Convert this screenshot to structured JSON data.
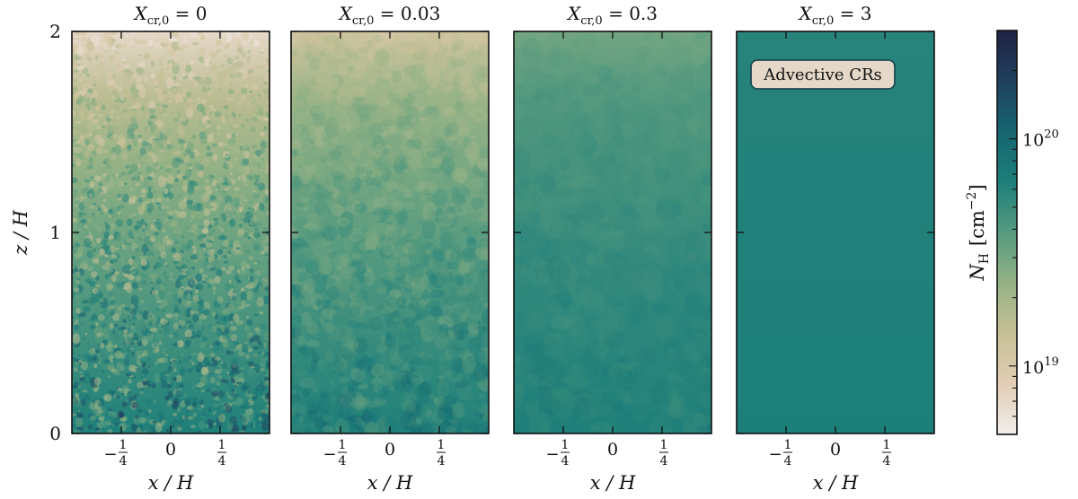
{
  "chart_data": {
    "type": "heatmap",
    "panels": [
      {
        "title_base": "X",
        "title_sub": "cr,0",
        "title_value": " = 0",
        "texture": "clumpy"
      },
      {
        "title_base": "X",
        "title_sub": "cr,0",
        "title_value": " = 0.03",
        "texture": "mixed"
      },
      {
        "title_base": "X",
        "title_sub": "cr,0",
        "title_value": " = 0.3",
        "texture": "smooth"
      },
      {
        "title_base": "X",
        "title_sub": "cr,0",
        "title_value": " = 3",
        "texture": "uniform"
      }
    ],
    "annotation": "Advective CRs",
    "xlabel": "x / H",
    "ylabel": "z / H",
    "x_ticks": [
      {
        "value": -0.25,
        "num": "1",
        "den": "4",
        "sign": "−"
      },
      {
        "value": 0,
        "label": "0"
      },
      {
        "value": 0.25,
        "num": "1",
        "den": "4",
        "sign": ""
      }
    ],
    "xlim": [
      -0.5,
      0.5
    ],
    "y_ticks": [
      {
        "value": 0,
        "label": "0"
      },
      {
        "value": 1,
        "label": "1"
      },
      {
        "value": 2,
        "label": "2"
      }
    ],
    "ylim": [
      0,
      2
    ],
    "colorbar": {
      "label_base": "N",
      "label_sub": "H",
      "label_unit": "[cm",
      "label_exp": "−2",
      "label_close": "]",
      "scale": "log",
      "range": [
        5e+18,
        3e+20
      ],
      "ticks": [
        {
          "value": 1e+19,
          "base": "10",
          "exp": "19"
        },
        {
          "value": 1e+20,
          "base": "10",
          "exp": "20"
        }
      ],
      "colors": [
        "#f2eeec",
        "#e1cdb5",
        "#c7c095",
        "#94b285",
        "#559a7f",
        "#1d7f7a",
        "#166570",
        "#20405e",
        "#1f2243"
      ]
    }
  }
}
